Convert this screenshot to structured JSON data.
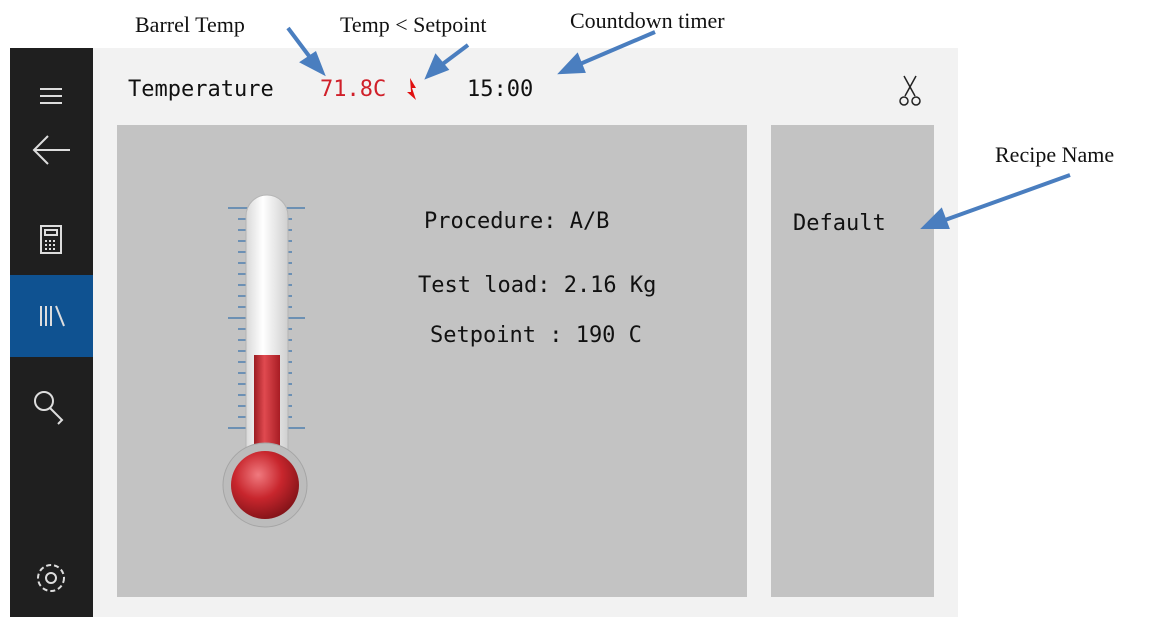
{
  "annotations": {
    "barrel_temp": "Barrel Temp",
    "temp_lt_setpoint": "Temp < Setpoint",
    "countdown_timer": "Countdown timer",
    "recipe_name": "Recipe Name"
  },
  "header": {
    "label": "Temperature",
    "temperature": "71.8C",
    "timer": "15:00"
  },
  "panel": {
    "procedure": "Procedure: A/B",
    "test_load": "Test load: 2.16 Kg",
    "setpoint": "Setpoint : 190 C"
  },
  "recipe": {
    "name": "Default"
  }
}
